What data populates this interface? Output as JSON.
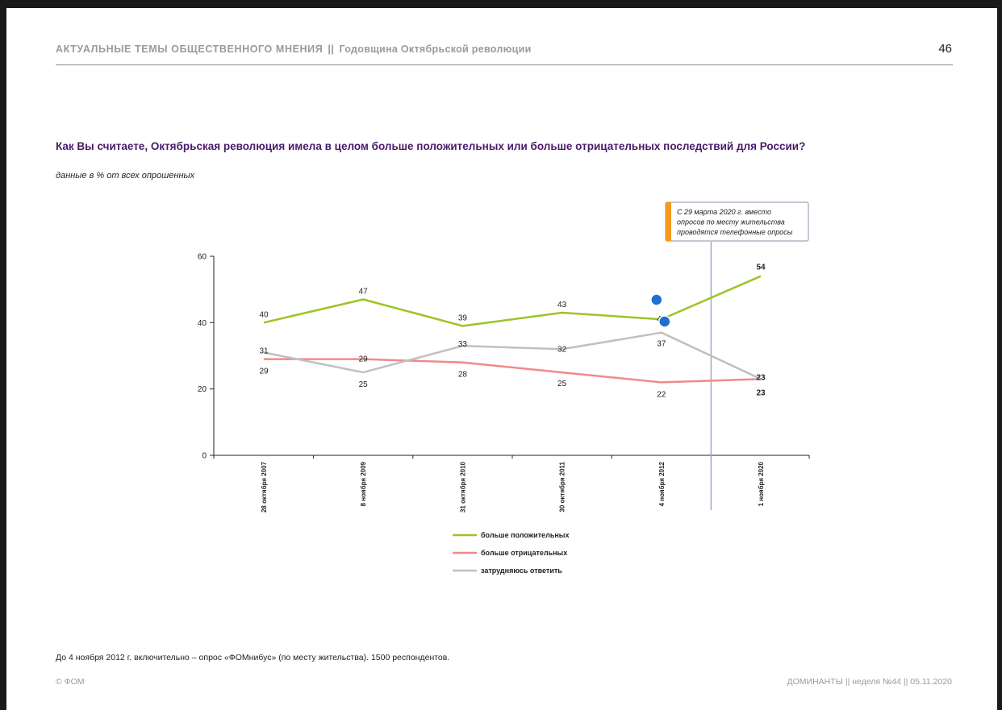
{
  "header": {
    "section": "АКТУАЛЬНЫЕ ТЕМЫ ОБЩЕСТВЕННОГО МНЕНИЯ",
    "separator": "||",
    "topic": "Годовщина Октябрьской революции",
    "page_number": "46"
  },
  "question": "Как Вы считаете, Октябрьская революция имела в целом больше положительных или больше отрицательных последствий для России?",
  "subtitle": "данные в % от всех опрошенных",
  "note": {
    "lines": [
      "С 29 марта 2020 г. вместо",
      "опросов по месту жительства",
      "проводятся телефонные опросы"
    ]
  },
  "chart_data": {
    "type": "line",
    "categories": [
      "28 октября 2007",
      "8 ноября 2009",
      "31 октября 2010",
      "30 октября 2011",
      "4 ноября 2012",
      "1 ноября 2020"
    ],
    "ylim": [
      0,
      60
    ],
    "yticks": [
      0,
      20,
      40,
      60
    ],
    "grid": false,
    "legend_position": "bottom",
    "series": [
      {
        "name": "больше положительных",
        "color": "#9dc425",
        "values": [
          40,
          47,
          39,
          43,
          41,
          54
        ]
      },
      {
        "name": "больше отрицательных",
        "color": "#f08a88",
        "values": [
          29,
          29,
          28,
          25,
          22,
          23
        ]
      },
      {
        "name": "затрудняюсь ответить",
        "color": "#c0c0c0",
        "values": [
          31,
          25,
          33,
          32,
          37,
          23
        ]
      }
    ]
  },
  "footer": {
    "note": "До 4 ноября 2012 г. включительно – опрос «ФОМнибус» (по месту жительства). 1500 респондентов.",
    "copyright": "© ФОМ",
    "right": "ДОМИНАНТЫ || неделя №44 || 05.11.2020"
  }
}
